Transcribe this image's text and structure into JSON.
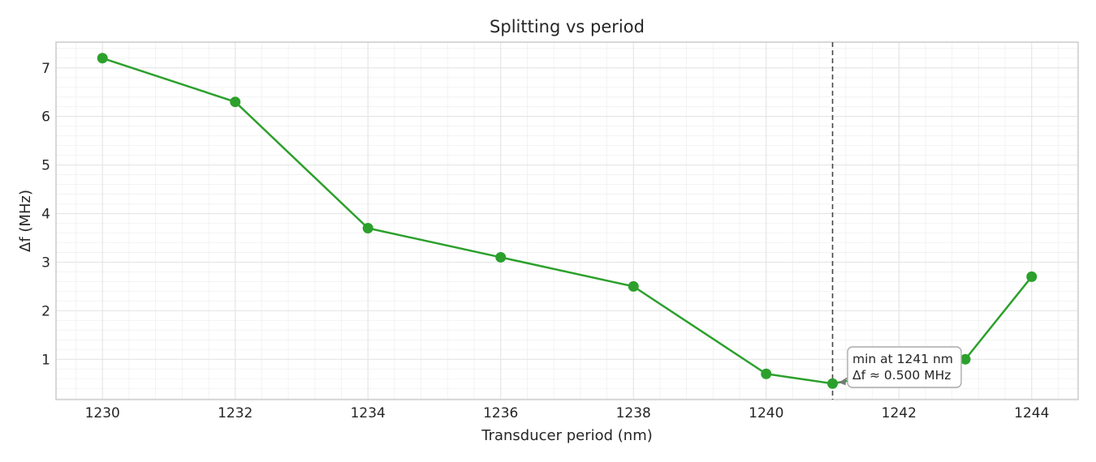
{
  "chart_data": {
    "type": "line",
    "title": "Splitting vs period",
    "xlabel": "Transducer period (nm)",
    "ylabel": "Δf (MHz)",
    "xlim": [
      1229.3,
      1244.7
    ],
    "ylim": [
      0.17,
      7.53
    ],
    "xticks": [
      1230,
      1232,
      1234,
      1236,
      1238,
      1240,
      1242,
      1244
    ],
    "yticks": [
      1,
      2,
      3,
      4,
      5,
      6,
      7
    ],
    "grid": true,
    "series": [
      {
        "x": [
          1230,
          1232,
          1234,
          1236,
          1238,
          1240,
          1241,
          1243,
          1244
        ],
        "y": [
          7.2,
          6.3,
          3.7,
          3.1,
          2.5,
          0.7,
          0.5,
          1.0,
          2.7
        ],
        "color": "#2ca02c",
        "marker": "circle"
      }
    ],
    "vline": {
      "x": 1241,
      "style": "dashed",
      "color": "#444444"
    },
    "annotation": {
      "line1": "min at 1241 nm",
      "line2": "Δf ≈ 0.500 MHz",
      "target_x": 1241,
      "target_y": 0.5
    }
  }
}
